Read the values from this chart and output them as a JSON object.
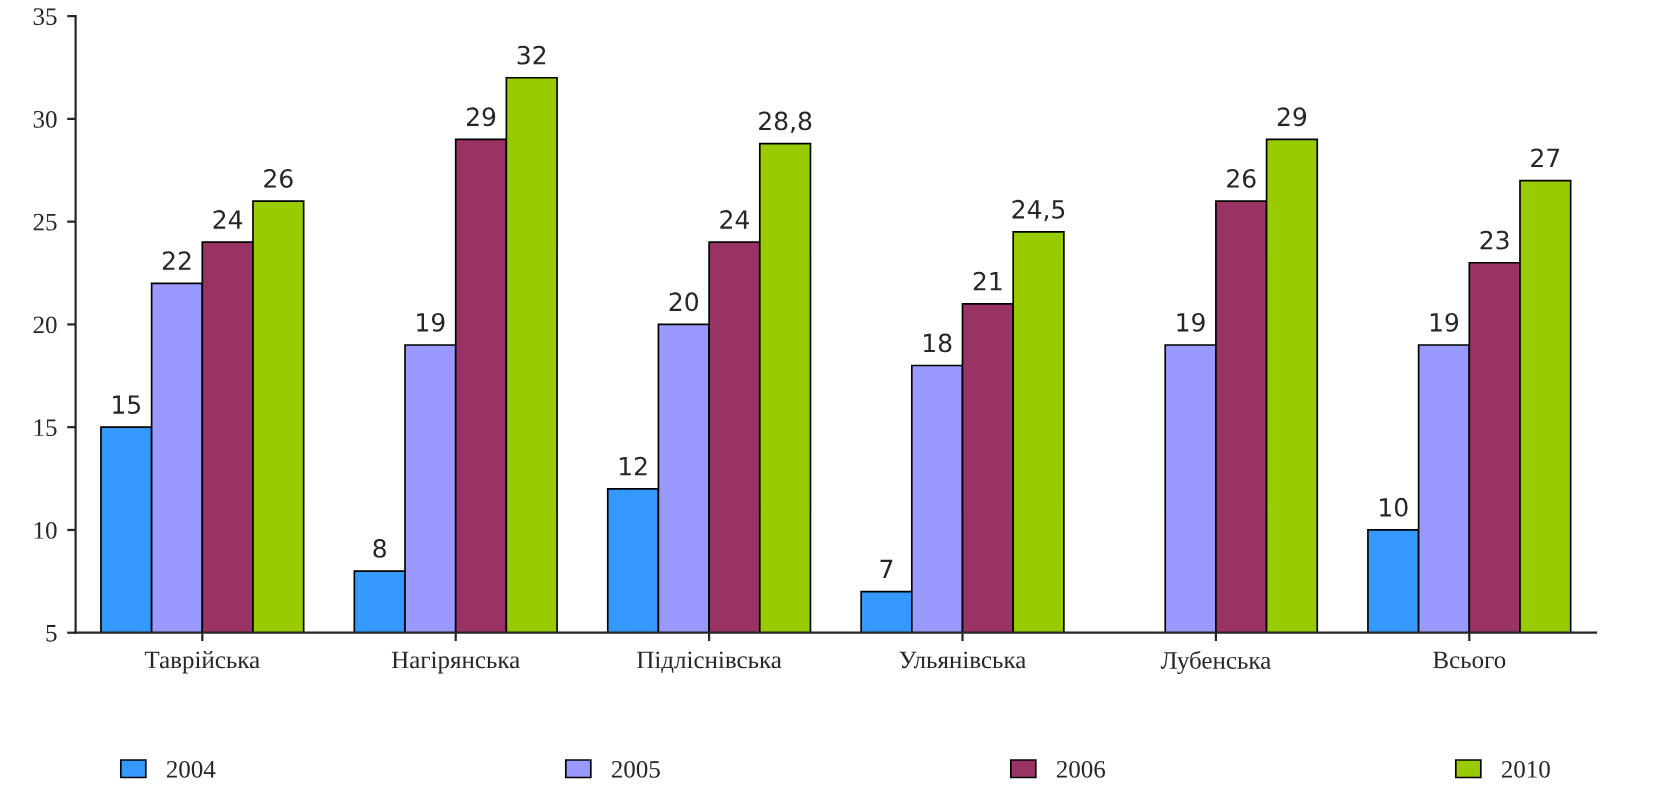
{
  "chart_data": {
    "type": "bar",
    "categories": [
      "Таврійська",
      "Нагірянська",
      "Підліснівська",
      "Ульянівська",
      "Лубенська",
      "Всього"
    ],
    "series": [
      {
        "name": "2004",
        "color": "#3399ff",
        "values": [
          15,
          8,
          12,
          7,
          null,
          10
        ],
        "value_labels": [
          "15",
          "8",
          "12",
          "7",
          null,
          "10"
        ]
      },
      {
        "name": "2005",
        "color": "#9999ff",
        "values": [
          22,
          19,
          20,
          18,
          19,
          19
        ],
        "value_labels": [
          "22",
          "19",
          "20",
          "18",
          "19",
          "19"
        ]
      },
      {
        "name": "2006",
        "color": "#993366",
        "values": [
          24,
          29,
          24,
          21,
          26,
          23
        ],
        "value_labels": [
          "24",
          "29",
          "24",
          "21",
          "26",
          "23"
        ]
      },
      {
        "name": "2010",
        "color": "#99cc00",
        "values": [
          26,
          32,
          28.8,
          24.5,
          29,
          27
        ],
        "value_labels": [
          "26",
          "32",
          "28,8",
          "24,5",
          "29",
          "27"
        ]
      }
    ],
    "ylim": [
      5,
      35
    ],
    "yticks": [
      5,
      10,
      15,
      20,
      25,
      30,
      35
    ],
    "grid": false,
    "legend": "bottom"
  }
}
